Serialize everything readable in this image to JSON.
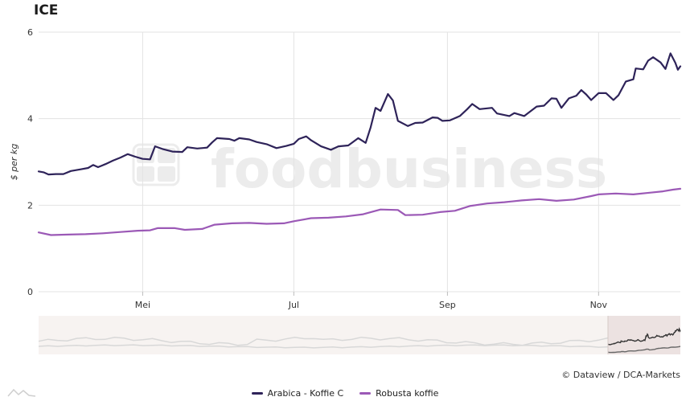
{
  "title": "ICE",
  "credit": "© Dataview / DCA-Markets",
  "watermark": "foodbusiness",
  "chart_data": {
    "type": "line",
    "title": "ICE",
    "ylabel": "$ per kg",
    "ylim": [
      0,
      6
    ],
    "yticks": [
      0,
      2,
      4,
      6
    ],
    "xlim": [
      "2022-03-20",
      "2022-12-04"
    ],
    "xticks": [
      {
        "label": "Mei",
        "date": "2022-05-01"
      },
      {
        "label": "Jul",
        "date": "2022-07-01"
      },
      {
        "label": "Sep",
        "date": "2022-09-01"
      },
      {
        "label": "Nov",
        "date": "2022-11-01"
      }
    ],
    "grid": true,
    "legend": "bottom",
    "series": [
      {
        "name": "Arabica - Koffie C",
        "color": "#2e2359",
        "points": [
          [
            "2022-03-20",
            2.78
          ],
          [
            "2022-03-22",
            2.76
          ],
          [
            "2022-03-24",
            2.71
          ],
          [
            "2022-03-27",
            2.72
          ],
          [
            "2022-03-30",
            2.72
          ],
          [
            "2022-04-02",
            2.79
          ],
          [
            "2022-04-06",
            2.83
          ],
          [
            "2022-04-09",
            2.86
          ],
          [
            "2022-04-11",
            2.93
          ],
          [
            "2022-04-13",
            2.88
          ],
          [
            "2022-04-16",
            2.95
          ],
          [
            "2022-04-19",
            3.03
          ],
          [
            "2022-04-22",
            3.1
          ],
          [
            "2022-04-25",
            3.18
          ],
          [
            "2022-04-28",
            3.12
          ],
          [
            "2022-05-01",
            3.07
          ],
          [
            "2022-05-04",
            3.06
          ],
          [
            "2022-05-06",
            3.36
          ],
          [
            "2022-05-09",
            3.3
          ],
          [
            "2022-05-13",
            3.24
          ],
          [
            "2022-05-17",
            3.23
          ],
          [
            "2022-05-19",
            3.34
          ],
          [
            "2022-05-23",
            3.31
          ],
          [
            "2022-05-27",
            3.33
          ],
          [
            "2022-05-29",
            3.45
          ],
          [
            "2022-05-31",
            3.55
          ],
          [
            "2022-06-05",
            3.53
          ],
          [
            "2022-06-07",
            3.49
          ],
          [
            "2022-06-09",
            3.55
          ],
          [
            "2022-06-13",
            3.52
          ],
          [
            "2022-06-16",
            3.46
          ],
          [
            "2022-06-20",
            3.41
          ],
          [
            "2022-06-24",
            3.32
          ],
          [
            "2022-06-28",
            3.37
          ],
          [
            "2022-07-01",
            3.42
          ],
          [
            "2022-07-03",
            3.53
          ],
          [
            "2022-07-06",
            3.59
          ],
          [
            "2022-07-08",
            3.5
          ],
          [
            "2022-07-12",
            3.36
          ],
          [
            "2022-07-16",
            3.28
          ],
          [
            "2022-07-19",
            3.36
          ],
          [
            "2022-07-23",
            3.38
          ],
          [
            "2022-07-27",
            3.55
          ],
          [
            "2022-07-30",
            3.44
          ],
          [
            "2022-08-01",
            3.8
          ],
          [
            "2022-08-03",
            4.25
          ],
          [
            "2022-08-05",
            4.18
          ],
          [
            "2022-08-08",
            4.57
          ],
          [
            "2022-08-10",
            4.42
          ],
          [
            "2022-08-12",
            3.95
          ],
          [
            "2022-08-16",
            3.83
          ],
          [
            "2022-08-19",
            3.9
          ],
          [
            "2022-08-22",
            3.91
          ],
          [
            "2022-08-26",
            4.03
          ],
          [
            "2022-08-28",
            4.02
          ],
          [
            "2022-08-30",
            3.95
          ],
          [
            "2022-09-02",
            3.96
          ],
          [
            "2022-09-06",
            4.06
          ],
          [
            "2022-09-09",
            4.22
          ],
          [
            "2022-09-11",
            4.34
          ],
          [
            "2022-09-14",
            4.22
          ],
          [
            "2022-09-19",
            4.25
          ],
          [
            "2022-09-21",
            4.12
          ],
          [
            "2022-09-26",
            4.06
          ],
          [
            "2022-09-28",
            4.13
          ],
          [
            "2022-10-02",
            4.06
          ],
          [
            "2022-10-04",
            4.15
          ],
          [
            "2022-10-07",
            4.28
          ],
          [
            "2022-10-10",
            4.3
          ],
          [
            "2022-10-13",
            4.47
          ],
          [
            "2022-10-15",
            4.46
          ],
          [
            "2022-10-17",
            4.25
          ],
          [
            "2022-10-20",
            4.47
          ],
          [
            "2022-10-23",
            4.53
          ],
          [
            "2022-10-25",
            4.66
          ],
          [
            "2022-10-27",
            4.56
          ],
          [
            "2022-10-29",
            4.43
          ],
          [
            "2022-11-01",
            4.59
          ],
          [
            "2022-11-04",
            4.59
          ],
          [
            "2022-11-07",
            4.43
          ],
          [
            "2022-11-09",
            4.54
          ],
          [
            "2022-11-12",
            4.86
          ],
          [
            "2022-11-15",
            4.91
          ],
          [
            "2022-11-16",
            5.16
          ],
          [
            "2022-11-19",
            5.14
          ],
          [
            "2022-11-21",
            5.34
          ],
          [
            "2022-11-23",
            5.42
          ],
          [
            "2022-11-26",
            5.3
          ],
          [
            "2022-11-28",
            5.15
          ],
          [
            "2022-11-30",
            5.51
          ],
          [
            "2022-12-02",
            5.29
          ],
          [
            "2022-12-03",
            5.13
          ],
          [
            "2022-12-04",
            5.21
          ]
        ]
      },
      {
        "name": "Robusta koffie",
        "color": "#9b59b6",
        "points": [
          [
            "2022-03-20",
            1.37
          ],
          [
            "2022-03-25",
            1.31
          ],
          [
            "2022-04-01",
            1.32
          ],
          [
            "2022-04-08",
            1.33
          ],
          [
            "2022-04-15",
            1.35
          ],
          [
            "2022-04-22",
            1.38
          ],
          [
            "2022-04-29",
            1.41
          ],
          [
            "2022-05-04",
            1.42
          ],
          [
            "2022-05-07",
            1.47
          ],
          [
            "2022-05-14",
            1.47
          ],
          [
            "2022-05-18",
            1.43
          ],
          [
            "2022-05-25",
            1.45
          ],
          [
            "2022-05-30",
            1.55
          ],
          [
            "2022-06-06",
            1.58
          ],
          [
            "2022-06-13",
            1.59
          ],
          [
            "2022-06-20",
            1.57
          ],
          [
            "2022-06-27",
            1.58
          ],
          [
            "2022-07-01",
            1.63
          ],
          [
            "2022-07-08",
            1.7
          ],
          [
            "2022-07-15",
            1.71
          ],
          [
            "2022-07-22",
            1.74
          ],
          [
            "2022-07-29",
            1.79
          ],
          [
            "2022-08-05",
            1.9
          ],
          [
            "2022-08-12",
            1.89
          ],
          [
            "2022-08-15",
            1.77
          ],
          [
            "2022-08-22",
            1.78
          ],
          [
            "2022-08-29",
            1.84
          ],
          [
            "2022-09-04",
            1.87
          ],
          [
            "2022-09-10",
            1.98
          ],
          [
            "2022-09-17",
            2.04
          ],
          [
            "2022-09-24",
            2.07
          ],
          [
            "2022-10-01",
            2.11
          ],
          [
            "2022-10-08",
            2.14
          ],
          [
            "2022-10-15",
            2.1
          ],
          [
            "2022-10-22",
            2.13
          ],
          [
            "2022-10-29",
            2.21
          ],
          [
            "2022-11-01",
            2.25
          ],
          [
            "2022-11-08",
            2.27
          ],
          [
            "2022-11-15",
            2.25
          ],
          [
            "2022-11-22",
            2.29
          ],
          [
            "2022-11-27",
            2.32
          ],
          [
            "2022-12-01",
            2.36
          ],
          [
            "2022-12-04",
            2.38
          ]
        ]
      }
    ]
  }
}
